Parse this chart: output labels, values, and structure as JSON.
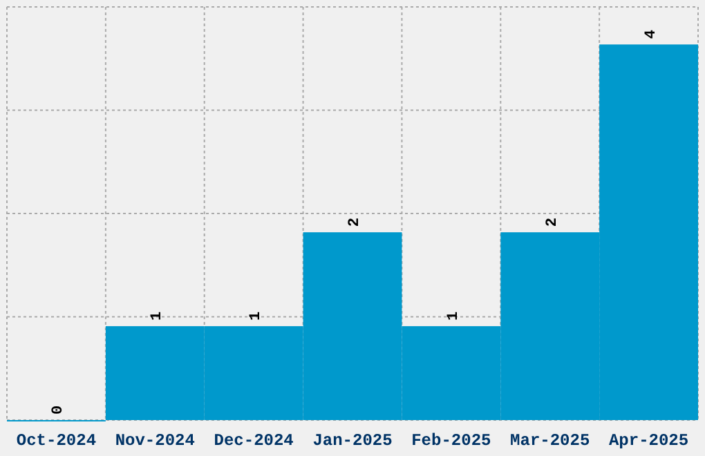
{
  "chart_data": {
    "type": "bar",
    "categories": [
      "Oct-2024",
      "Nov-2024",
      "Dec-2024",
      "Jan-2025",
      "Feb-2025",
      "Mar-2025",
      "Apr-2025"
    ],
    "values": [
      0,
      1,
      1,
      2,
      1,
      2,
      4
    ],
    "color": "#0099cc",
    "data_labels": true,
    "grid": true,
    "ylim": [
      0,
      4.4
    ],
    "yticks": [
      {
        "value": 0,
        "label": null
      },
      {
        "value": 1.1,
        "label": null
      },
      {
        "value": 2.2,
        "label": null
      },
      {
        "value": 3.3,
        "label": null
      },
      {
        "value": 4.4,
        "label": null
      }
    ],
    "tick_labels": "x"
  }
}
